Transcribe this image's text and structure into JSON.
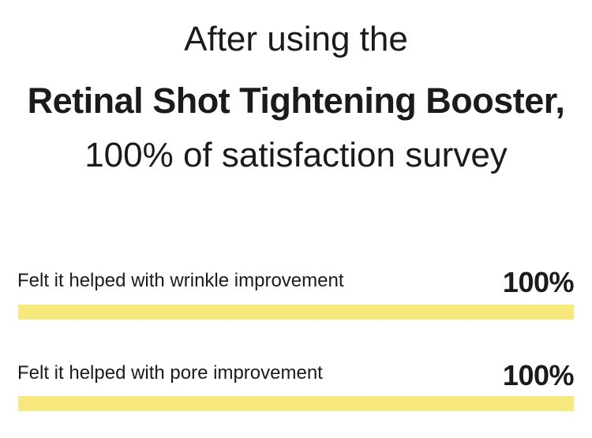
{
  "colors": {
    "bar": "#F7E87D",
    "text": "#1B1B1B",
    "background": "#FFFFFF"
  },
  "header": {
    "line1": "After using the",
    "line2": "Retinal Shot Tightening Booster,",
    "line3": "100% of satisfaction survey"
  },
  "survey": {
    "rows": [
      {
        "label": "Felt it helped with wrinkle improvement",
        "value_label": "100%",
        "value": 100
      },
      {
        "label": "Felt it helped with pore improvement",
        "value_label": "100%",
        "value": 100
      }
    ]
  },
  "chart_data": {
    "type": "bar",
    "orientation": "horizontal",
    "title": "After using the Retinal Shot Tightening Booster, 100% of satisfaction survey",
    "categories": [
      "Felt it helped with wrinkle improvement",
      "Felt it helped with pore improvement"
    ],
    "values": [
      100,
      100
    ],
    "unit": "%",
    "xlim": [
      0,
      100
    ],
    "data_labels": [
      "100%",
      "100%"
    ],
    "bar_color": "#F7E87D",
    "grid": false,
    "legend": "none"
  }
}
